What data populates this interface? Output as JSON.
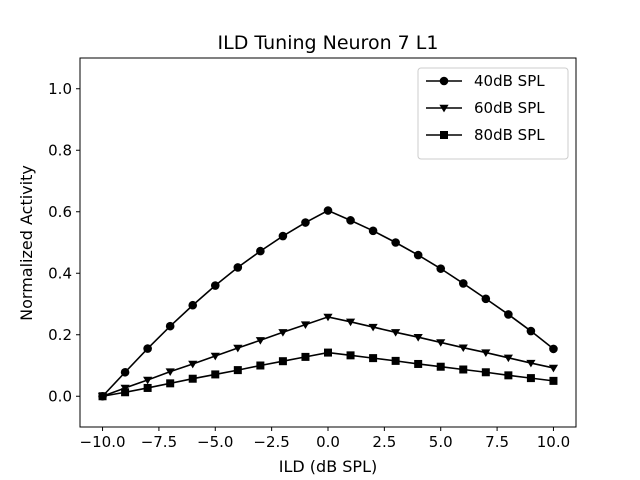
{
  "chart_data": {
    "type": "line",
    "title": "ILD Tuning Neuron 7 L1",
    "xlabel": "ILD (dB SPL)",
    "ylabel": "Normalized Activity",
    "xlim": [
      -11,
      11
    ],
    "ylim": [
      -0.1,
      1.1
    ],
    "xticks": [
      -10,
      -7.5,
      -5,
      -2.5,
      0,
      2.5,
      5,
      7.5,
      10
    ],
    "xtick_labels": [
      "−10.0",
      "−7.5",
      "−5.0",
      "−2.5",
      "0.0",
      "2.5",
      "5.0",
      "7.5",
      "10.0"
    ],
    "yticks": [
      0,
      0.2,
      0.4,
      0.6,
      0.8,
      1.0
    ],
    "ytick_labels": [
      "0.0",
      "0.2",
      "0.4",
      "0.6",
      "0.8",
      "1.0"
    ],
    "grid": false,
    "legend_position": "top-right",
    "x": [
      -10,
      -9,
      -8,
      -7,
      -6,
      -5,
      -4,
      -3,
      -2,
      -1,
      0,
      1,
      2,
      3,
      4,
      5,
      6,
      7,
      8,
      9,
      10
    ],
    "series": [
      {
        "name": "40dB SPL",
        "marker": "circle",
        "color": "#000000",
        "values": [
          0.0,
          0.078,
          0.155,
          0.228,
          0.296,
          0.36,
          0.419,
          0.472,
          0.521,
          0.565,
          0.604,
          0.572,
          0.538,
          0.5,
          0.459,
          0.415,
          0.367,
          0.317,
          0.266,
          0.212,
          0.154
        ]
      },
      {
        "name": "60dB SPL",
        "marker": "triangle-down",
        "color": "#000000",
        "values": [
          0.0,
          0.027,
          0.053,
          0.08,
          0.105,
          0.131,
          0.157,
          0.182,
          0.208,
          0.233,
          0.258,
          0.242,
          0.225,
          0.208,
          0.192,
          0.175,
          0.158,
          0.142,
          0.125,
          0.108,
          0.092
        ]
      },
      {
        "name": "80dB SPL",
        "marker": "square",
        "color": "#000000",
        "values": [
          0.0,
          0.013,
          0.027,
          0.042,
          0.057,
          0.071,
          0.085,
          0.1,
          0.114,
          0.128,
          0.142,
          0.133,
          0.124,
          0.115,
          0.105,
          0.096,
          0.087,
          0.078,
          0.068,
          0.059,
          0.05
        ]
      }
    ]
  }
}
